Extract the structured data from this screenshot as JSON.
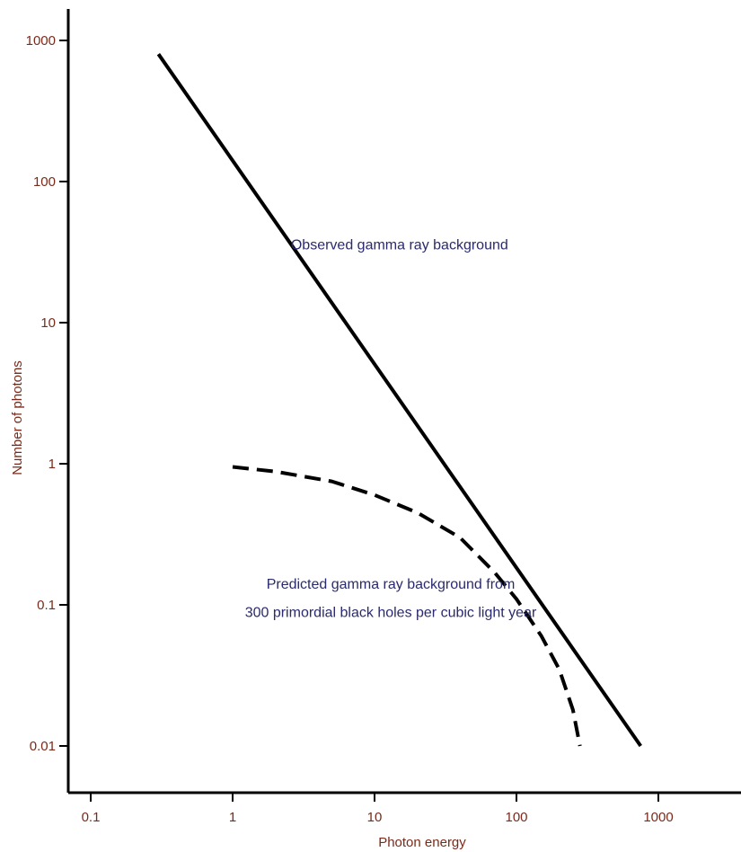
{
  "chart_data": {
    "type": "line",
    "xlabel": "Photon energy",
    "ylabel": "Number of photons",
    "xscale": "log",
    "yscale": "log",
    "xlim": [
      0.06,
      3500
    ],
    "ylim": [
      0.005,
      1400
    ],
    "x_ticks": [
      {
        "value": 0.1,
        "label": "0.1"
      },
      {
        "value": 1,
        "label": "1"
      },
      {
        "value": 10,
        "label": "10"
      },
      {
        "value": 100,
        "label": "100"
      },
      {
        "value": 1000,
        "label": "1000"
      }
    ],
    "y_ticks": [
      {
        "value": 0.01,
        "label": "0.01"
      },
      {
        "value": 0.1,
        "label": "0.1"
      },
      {
        "value": 1,
        "label": "1"
      },
      {
        "value": 10,
        "label": "10"
      },
      {
        "value": 100,
        "label": "100"
      },
      {
        "value": 1000,
        "label": "1000"
      }
    ],
    "grid": false,
    "legend": "none",
    "series": [
      {
        "style": "solid",
        "color": "#000000",
        "points": [
          [
            0.3,
            800
          ],
          [
            750,
            0.01
          ]
        ]
      },
      {
        "style": "dashed",
        "color": "#000000",
        "points": [
          [
            1.0,
            0.95
          ],
          [
            2.0,
            0.88
          ],
          [
            5.0,
            0.75
          ],
          [
            10,
            0.6
          ],
          [
            20,
            0.45
          ],
          [
            40,
            0.3
          ],
          [
            70,
            0.17
          ],
          [
            100,
            0.11
          ],
          [
            150,
            0.06
          ],
          [
            200,
            0.035
          ],
          [
            250,
            0.018
          ],
          [
            280,
            0.01
          ]
        ]
      }
    ],
    "annotations": [
      {
        "text": "Observed gamma ray background",
        "x": 15,
        "y": 33
      },
      {
        "text": "Predicted gamma ray background from",
        "x": 13,
        "y": 0.13
      },
      {
        "text": "300 primordial black holes per cubic light year",
        "x": 13,
        "y": 0.082
      }
    ]
  }
}
